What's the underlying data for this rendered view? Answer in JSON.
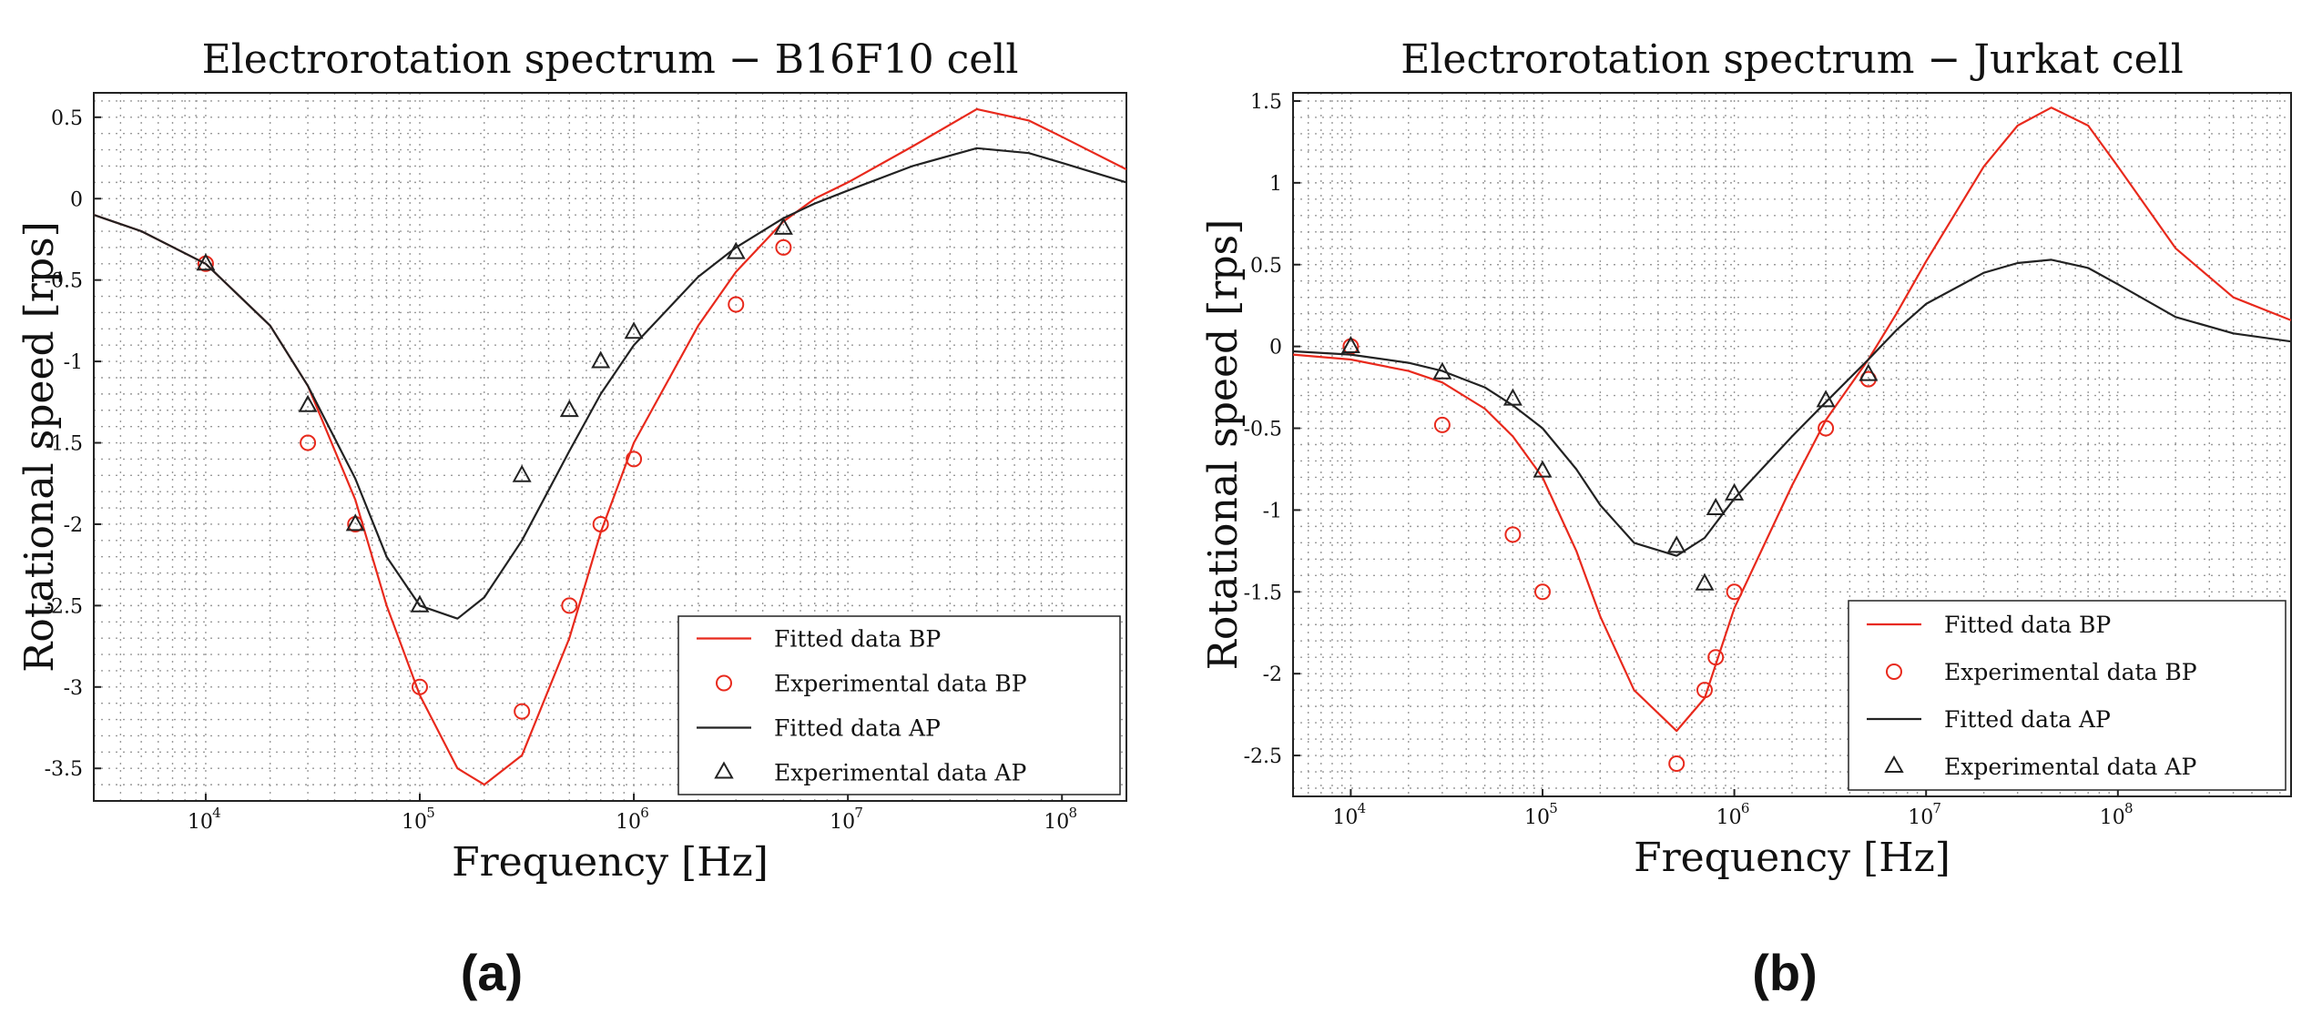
{
  "chart_data": [
    {
      "type": "scatter",
      "panel_label": "(a)",
      "title": "Electrorotation spectrum − B16F10 cell",
      "xlabel": "Frequency [Hz]",
      "ylabel": "Rotational speed [rps]",
      "xscale": "log",
      "xlim": [
        3000,
        200000000
      ],
      "ylim": [
        -3.7,
        0.65
      ],
      "yticks": [
        "0.5",
        "0",
        "-0.5",
        "-1",
        "-1.5",
        "-2",
        "-2.5",
        "-3",
        "-3.5"
      ],
      "ytick_values": [
        0.5,
        0,
        -0.5,
        -1,
        -1.5,
        -2,
        -2.5,
        -3,
        -3.5
      ],
      "xticks": [
        {
          "base": "10",
          "exp": "4",
          "value": 10000
        },
        {
          "base": "10",
          "exp": "5",
          "value": 100000
        },
        {
          "base": "10",
          "exp": "6",
          "value": 1000000
        },
        {
          "base": "10",
          "exp": "7",
          "value": 10000000
        },
        {
          "base": "10",
          "exp": "8",
          "value": 100000000
        }
      ],
      "legend_position": "bottom-right",
      "series": [
        {
          "name": "Fitted data BP",
          "kind": "line",
          "color": "#e8291c",
          "x": [
            3000,
            5000,
            10000,
            20000,
            30000,
            50000,
            70000,
            100000,
            150000,
            200000,
            300000,
            500000,
            700000,
            1000000,
            2000000,
            3000000,
            5000000,
            7000000,
            10000000,
            20000000,
            40000000,
            70000000,
            100000000,
            200000000
          ],
          "y": [
            -0.1,
            -0.2,
            -0.4,
            -0.78,
            -1.15,
            -1.85,
            -2.5,
            -3.05,
            -3.5,
            -3.6,
            -3.42,
            -2.7,
            -2.05,
            -1.5,
            -0.78,
            -0.45,
            -0.14,
            0.0,
            0.1,
            0.32,
            0.55,
            0.48,
            0.38,
            0.18
          ]
        },
        {
          "name": "Experimental data BP",
          "kind": "points",
          "marker": "circle",
          "color": "#e8291c",
          "x": [
            10000,
            30000,
            50000,
            100000,
            300000,
            500000,
            700000,
            1000000,
            3000000,
            5000000
          ],
          "y": [
            -0.4,
            -1.5,
            -2.0,
            -3.0,
            -3.15,
            -2.5,
            -2.0,
            -1.6,
            -0.65,
            -0.3
          ]
        },
        {
          "name": "Fitted data AP",
          "kind": "line",
          "color": "#222222",
          "x": [
            3000,
            5000,
            10000,
            20000,
            30000,
            50000,
            70000,
            100000,
            150000,
            200000,
            300000,
            500000,
            700000,
            1000000,
            2000000,
            3000000,
            5000000,
            7000000,
            10000000,
            20000000,
            40000000,
            70000000,
            100000000,
            200000000
          ],
          "y": [
            -0.1,
            -0.2,
            -0.4,
            -0.78,
            -1.15,
            -1.72,
            -2.2,
            -2.5,
            -2.58,
            -2.45,
            -2.1,
            -1.55,
            -1.2,
            -0.9,
            -0.48,
            -0.3,
            -0.12,
            -0.03,
            0.05,
            0.2,
            0.31,
            0.28,
            0.22,
            0.1
          ]
        },
        {
          "name": "Experimental data AP",
          "kind": "points",
          "marker": "triangle",
          "color": "#222222",
          "x": [
            10000,
            30000,
            50000,
            100000,
            300000,
            500000,
            700000,
            1000000,
            3000000,
            5000000
          ],
          "y": [
            -0.4,
            -1.27,
            -2.0,
            -2.5,
            -1.7,
            -1.3,
            -1.0,
            -0.82,
            -0.33,
            -0.18
          ]
        }
      ]
    },
    {
      "type": "scatter",
      "panel_label": "(b)",
      "title": "Electrorotation spectrum − Jurkat cell",
      "xlabel": "Frequency [Hz]",
      "ylabel": "Rotational speed [rps]",
      "xscale": "log",
      "xlim": [
        5000,
        800000000
      ],
      "ylim": [
        -2.75,
        1.55
      ],
      "yticks": [
        "1.5",
        "1",
        "0.5",
        "0",
        "-0.5",
        "-1",
        "-1.5",
        "-2",
        "-2.5"
      ],
      "ytick_values": [
        1.5,
        1,
        0.5,
        0,
        -0.5,
        -1,
        -1.5,
        -2,
        -2.5
      ],
      "xticks": [
        {
          "base": "10",
          "exp": "4",
          "value": 10000
        },
        {
          "base": "10",
          "exp": "5",
          "value": 100000
        },
        {
          "base": "10",
          "exp": "6",
          "value": 1000000
        },
        {
          "base": "10",
          "exp": "7",
          "value": 10000000
        },
        {
          "base": "10",
          "exp": "8",
          "value": 100000000
        }
      ],
      "legend_position": "bottom-right",
      "series": [
        {
          "name": "Fitted data BP",
          "kind": "line",
          "color": "#e8291c",
          "x": [
            5000,
            10000,
            20000,
            30000,
            50000,
            70000,
            100000,
            150000,
            200000,
            300000,
            500000,
            700000,
            1000000,
            2000000,
            3000000,
            5000000,
            7000000,
            10000000,
            20000000,
            30000000,
            45000000,
            70000000,
            100000000,
            200000000,
            400000000,
            800000000
          ],
          "y": [
            -0.05,
            -0.08,
            -0.15,
            -0.22,
            -0.38,
            -0.55,
            -0.8,
            -1.25,
            -1.65,
            -2.1,
            -2.35,
            -2.15,
            -1.6,
            -0.85,
            -0.45,
            -0.08,
            0.2,
            0.52,
            1.1,
            1.35,
            1.46,
            1.35,
            1.1,
            0.6,
            0.3,
            0.16
          ]
        },
        {
          "name": "Experimental data BP",
          "kind": "points",
          "marker": "circle",
          "color": "#e8291c",
          "x": [
            10000,
            30000,
            70000,
            100000,
            500000,
            700000,
            800000,
            1000000,
            3000000,
            5000000
          ],
          "y": [
            0.0,
            -0.48,
            -1.15,
            -1.5,
            -2.55,
            -2.1,
            -1.9,
            -1.5,
            -0.5,
            -0.2
          ]
        },
        {
          "name": "Fitted data AP",
          "kind": "line",
          "color": "#222222",
          "x": [
            5000,
            10000,
            20000,
            30000,
            50000,
            70000,
            100000,
            150000,
            200000,
            300000,
            500000,
            700000,
            1000000,
            2000000,
            3000000,
            5000000,
            7000000,
            10000000,
            20000000,
            30000000,
            45000000,
            70000000,
            100000000,
            200000000,
            400000000,
            800000000
          ],
          "y": [
            -0.03,
            -0.05,
            -0.1,
            -0.15,
            -0.25,
            -0.36,
            -0.5,
            -0.75,
            -0.97,
            -1.2,
            -1.28,
            -1.17,
            -0.93,
            -0.55,
            -0.34,
            -0.08,
            0.1,
            0.26,
            0.45,
            0.51,
            0.53,
            0.48,
            0.38,
            0.18,
            0.08,
            0.03
          ]
        },
        {
          "name": "Experimental data AP",
          "kind": "points",
          "marker": "triangle",
          "color": "#222222",
          "x": [
            10000,
            30000,
            70000,
            100000,
            500000,
            700000,
            800000,
            1000000,
            3000000,
            5000000
          ],
          "y": [
            0.0,
            -0.16,
            -0.32,
            -0.76,
            -1.22,
            -1.45,
            -0.99,
            -0.9,
            -0.33,
            -0.17
          ]
        }
      ]
    }
  ]
}
